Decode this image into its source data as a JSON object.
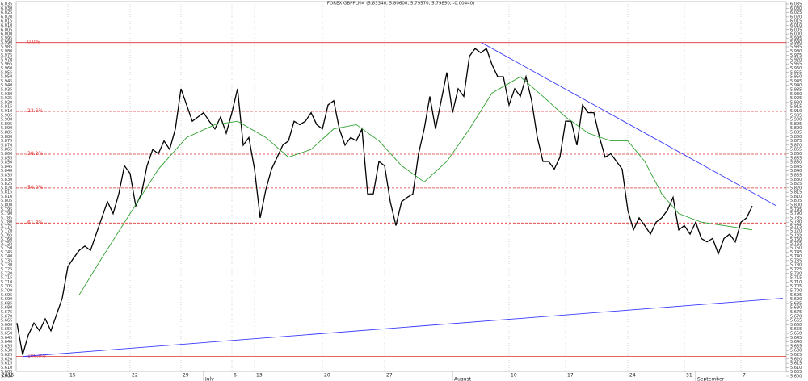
{
  "chart_data": {
    "type": "line",
    "title": "FOREX GBPPLN= (5.83340, 5.80600, 5.79570, 5.79850, -0.00440)",
    "xlim": [
      -3,
      136
    ],
    "ylim": [
      5.6,
      6.035
    ],
    "xticks": [
      {
        "value": -3,
        "label": "2015"
      },
      {
        "value": 9,
        "label": "15"
      },
      {
        "value": 20,
        "label": "22"
      },
      {
        "value": 29,
        "label": "29"
      },
      {
        "value": 38,
        "label": "6"
      },
      {
        "value": 42,
        "label": "13"
      },
      {
        "value": 54,
        "label": "20"
      },
      {
        "value": 65,
        "label": "27"
      },
      {
        "value": 87,
        "label": "10"
      },
      {
        "value": 97,
        "label": "17"
      },
      {
        "value": 108,
        "label": "24"
      },
      {
        "value": 118,
        "label": "31"
      },
      {
        "value": 128,
        "label": "7"
      }
    ],
    "xticks_months": [
      {
        "value": 33,
        "label": "July"
      },
      {
        "value": 77,
        "label": "August"
      },
      {
        "value": 120,
        "label": "September"
      }
    ],
    "yticks": [
      {
        "value": 5.6,
        "label": "5.600"
      },
      5.605,
      {
        "value": 5.61,
        "label": "5.610"
      },
      5.615,
      {
        "value": 5.62,
        "label": "5.620"
      },
      5.625,
      {
        "value": 5.63,
        "label": "5.630"
      },
      5.635,
      {
        "value": 5.64,
        "label": "5.640"
      },
      5.645,
      {
        "value": 5.65,
        "label": "5.650"
      },
      5.655,
      {
        "value": 5.66,
        "label": "5.660"
      },
      5.665,
      {
        "value": 5.67,
        "label": "5.670"
      },
      5.675,
      {
        "value": 5.68,
        "label": "5.680"
      },
      5.685,
      {
        "value": 5.69,
        "label": "5.690"
      },
      5.695,
      {
        "value": 5.7,
        "label": "5.700"
      },
      5.705,
      {
        "value": 5.71,
        "label": "5.710"
      },
      5.715,
      {
        "value": 5.72,
        "label": "5.720"
      },
      5.725,
      {
        "value": 5.73,
        "label": "5.730"
      },
      5.735,
      {
        "value": 5.74,
        "label": "5.740"
      },
      5.745,
      {
        "value": 5.75,
        "label": "5.750"
      },
      5.755,
      {
        "value": 5.76,
        "label": "5.760"
      },
      5.765,
      {
        "value": 5.77,
        "label": "5.770"
      },
      5.775,
      {
        "value": 5.78,
        "label": "5.780"
      },
      5.785,
      {
        "value": 5.79,
        "label": "5.790"
      },
      5.795,
      {
        "value": 5.8,
        "label": "5.800"
      },
      5.805,
      {
        "value": 5.81,
        "label": "5.810"
      },
      5.815,
      {
        "value": 5.82,
        "label": "5.820"
      },
      5.825,
      {
        "value": 5.83,
        "label": "5.830"
      },
      5.835,
      {
        "value": 5.84,
        "label": "5.840"
      },
      5.845,
      {
        "value": 5.85,
        "label": "5.850"
      },
      5.855,
      {
        "value": 5.86,
        "label": "5.860"
      },
      5.865,
      {
        "value": 5.87,
        "label": "5.870"
      },
      5.875,
      {
        "value": 5.88,
        "label": "5.880"
      },
      5.885,
      {
        "value": 5.89,
        "label": "5.890"
      },
      5.895,
      {
        "value": 5.9,
        "label": "5.900"
      },
      5.905,
      {
        "value": 5.91,
        "label": "5.910"
      },
      5.915,
      {
        "value": 5.92,
        "label": "5.920"
      },
      5.925,
      {
        "value": 5.93,
        "label": "5.930"
      },
      5.935,
      {
        "value": 5.94,
        "label": "5.940"
      },
      5.945,
      {
        "value": 5.95,
        "label": "5.950"
      },
      5.955,
      {
        "value": 5.96,
        "label": "5.960"
      },
      5.965,
      {
        "value": 5.97,
        "label": "5.970"
      },
      5.975,
      {
        "value": 5.98,
        "label": "5.980"
      },
      5.985,
      {
        "value": 5.99,
        "label": "5.990"
      },
      5.995,
      {
        "value": 6.0,
        "label": "6.000"
      },
      6.005,
      {
        "value": 6.01,
        "label": "6.010"
      },
      6.015,
      {
        "value": 6.02,
        "label": "6.020"
      },
      6.025,
      {
        "value": 6.03,
        "label": "6.030"
      },
      6.035
    ],
    "fib_levels": [
      {
        "label": "0.0%",
        "value": 5.99
      },
      {
        "label": "23.6%",
        "value": 5.9095
      },
      {
        "label": "38.2%",
        "value": 5.8595
      },
      {
        "label": "50.0%",
        "value": 5.82
      },
      {
        "label": "61.8%",
        "value": 5.779
      },
      {
        "label": "100.0%",
        "value": 5.623
      }
    ],
    "fib_color": "#e03030",
    "grid": true,
    "series": [
      {
        "color": "#000000",
        "values": [
          5.662,
          5.625,
          5.648,
          5.662,
          5.653,
          5.667,
          5.653,
          5.672,
          5.691,
          5.728,
          5.738,
          5.747,
          5.752,
          5.747,
          5.766,
          5.785,
          5.804,
          5.79,
          5.813,
          5.846,
          5.837,
          5.799,
          5.813,
          5.846,
          5.865,
          5.86,
          5.875,
          5.865,
          5.889,
          5.936,
          5.917,
          5.898,
          5.903,
          5.908,
          5.898,
          5.889,
          5.903,
          5.884,
          5.908,
          5.936,
          5.87,
          5.879,
          5.842,
          5.785,
          5.818,
          5.842,
          5.856,
          5.87,
          5.875,
          5.898,
          5.894,
          5.898,
          5.908,
          5.894,
          5.889,
          5.917,
          5.922,
          5.889,
          5.87,
          5.879,
          5.875,
          5.889,
          5.813,
          5.813,
          5.851,
          5.846,
          5.804,
          5.776,
          5.804,
          5.809,
          5.813,
          5.86,
          5.889,
          5.927,
          5.889,
          5.922,
          5.955,
          5.908,
          5.936,
          5.927,
          5.974,
          5.983,
          5.978,
          5.983,
          5.964,
          5.95,
          5.95,
          5.917,
          5.936,
          5.927,
          5.95,
          5.922,
          5.879,
          5.851,
          5.851,
          5.842,
          5.856,
          5.898,
          5.898,
          5.87,
          5.917,
          5.908,
          5.908,
          5.879,
          5.856,
          5.86,
          5.851,
          5.842,
          5.794,
          5.771,
          5.785,
          5.776,
          5.766,
          5.78,
          5.785,
          5.794,
          5.809,
          5.771,
          5.776,
          5.766,
          5.78,
          5.761,
          5.757,
          5.761,
          5.743,
          5.761,
          5.766,
          5.757,
          5.78,
          5.785,
          5.799
        ]
      },
      {
        "color": "#2ea02e",
        "x": [
          11,
          15,
          20,
          25,
          30,
          35,
          39,
          44,
          48,
          52,
          56,
          60,
          64,
          68,
          72,
          76,
          80,
          84,
          89,
          93,
          97,
          101,
          105,
          108,
          111,
          114,
          117,
          121,
          125,
          130
        ],
        "values": [
          5.695,
          5.738,
          5.79,
          5.842,
          5.879,
          5.894,
          5.898,
          5.879,
          5.856,
          5.865,
          5.889,
          5.894,
          5.875,
          5.846,
          5.827,
          5.851,
          5.889,
          5.931,
          5.95,
          5.927,
          5.903,
          5.884,
          5.875,
          5.875,
          5.851,
          5.813,
          5.79,
          5.78,
          5.776,
          5.771
        ]
      },
      {
        "color": "#3a3aff",
        "x": [
          82.1,
          134.3
        ],
        "values": [
          5.99,
          5.799
        ]
      },
      {
        "color": "#3a3aff",
        "x": [
          1.1,
          135.4
        ],
        "values": [
          5.623,
          5.691
        ]
      }
    ]
  }
}
